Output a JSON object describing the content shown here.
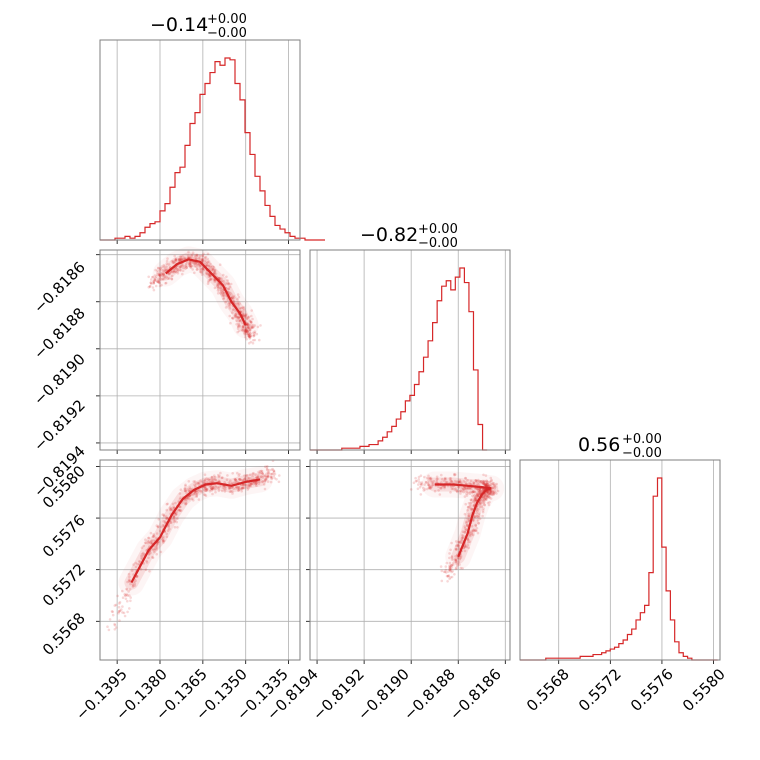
{
  "chart_data": {
    "type": "corner",
    "color": "#d62728",
    "parameters": [
      {
        "title_value": "−0.14",
        "title_plus": "+0.00",
        "title_minus": "−0.00",
        "range": [
          -0.1401,
          -0.1331
        ],
        "ticks": [
          -0.1395,
          -0.138,
          -0.1365,
          -0.135,
          -0.1335
        ],
        "tick_labels": [
          "−0.1395",
          "−0.1380",
          "−0.1365",
          "−0.1350",
          "−0.1335"
        ],
        "hist": {
          "edges_start": -0.1401,
          "bin_width": 0.000175,
          "counts": [
            0,
            0,
            0,
            1,
            1,
            2,
            1,
            2,
            4,
            7,
            9,
            10,
            16,
            20,
            29,
            37,
            40,
            52,
            64,
            70,
            80,
            86,
            92,
            98,
            96,
            100,
            99,
            86,
            77,
            59,
            47,
            35,
            27,
            19,
            13,
            8,
            6,
            4,
            2,
            1,
            1,
            0,
            0,
            0,
            0
          ]
        }
      },
      {
        "title_value": "−0.82",
        "title_plus": "+0.00",
        "title_minus": "−0.00",
        "range": [
          -0.81943,
          -0.81858
        ],
        "ticks": [
          -0.8194,
          -0.8192,
          -0.819,
          -0.8188,
          -0.8186
        ],
        "tick_labels": [
          "−0.8194",
          "−0.8192",
          "−0.8190",
          "−0.8188",
          "−0.8186"
        ],
        "hist": {
          "edges_start": -0.81943,
          "bin_width": 1.93e-05,
          "counts": [
            0,
            0,
            0,
            0,
            0,
            0,
            0,
            1,
            1,
            1,
            1,
            2,
            2,
            3,
            3,
            5,
            7,
            10,
            13,
            17,
            21,
            27,
            30,
            36,
            43,
            51,
            60,
            70,
            82,
            90,
            93,
            88,
            95,
            100,
            92,
            76,
            44,
            14,
            0
          ]
        }
      },
      {
        "title_value": "0.56",
        "title_plus": "+0.00",
        "title_minus": "−0.00",
        "range": [
          0.5565,
          0.55805
        ],
        "ticks": [
          0.5568,
          0.5572,
          0.5576,
          0.558
        ],
        "tick_labels": [
          "0.5568",
          "0.5572",
          "0.5576",
          "0.5580"
        ],
        "hist": {
          "edges_start": 0.5565,
          "bin_width": 3.33e-05,
          "counts": [
            0,
            0,
            0,
            0,
            0,
            0,
            1,
            1,
            1,
            1,
            1,
            1,
            1,
            1,
            2,
            2,
            2,
            3,
            3,
            4,
            5,
            6,
            7,
            9,
            11,
            14,
            17,
            22,
            26,
            30,
            48,
            90,
            100,
            62,
            38,
            22,
            10,
            4,
            2,
            1,
            0,
            0,
            0,
            0,
            0,
            0
          ]
        }
      }
    ],
    "y_tick_labels": {
      "row1": [
        "−0.8186",
        "−0.8188",
        "−0.8190",
        "−0.8192",
        "−0.8194"
      ],
      "row2": [
        "0.5580",
        "0.5576",
        "0.5572",
        "0.5568"
      ]
    },
    "scatter": {
      "p1_vs_p0": {
        "ridge": [
          [
            -0.1382,
            -0.81872
          ],
          [
            -0.1378,
            -0.81868
          ],
          [
            -0.1374,
            -0.81864
          ],
          [
            -0.137,
            -0.81862
          ],
          [
            -0.1366,
            -0.81863
          ],
          [
            -0.1362,
            -0.81868
          ],
          [
            -0.1358,
            -0.81873
          ],
          [
            -0.1355,
            -0.8188
          ],
          [
            -0.1352,
            -0.81885
          ],
          [
            -0.135,
            -0.8189
          ],
          [
            -0.1348,
            -0.81895
          ]
        ],
        "spread": 2e-05
      },
      "p2_vs_p0": {
        "ridge": [
          [
            -0.1397,
            0.55675
          ],
          [
            -0.139,
            0.5571
          ],
          [
            -0.1384,
            0.55735
          ],
          [
            -0.138,
            0.55745
          ],
          [
            -0.1376,
            0.55762
          ],
          [
            -0.1372,
            0.55775
          ],
          [
            -0.1368,
            0.55782
          ],
          [
            -0.1364,
            0.55786
          ],
          [
            -0.136,
            0.55787
          ],
          [
            -0.1355,
            0.55785
          ],
          [
            -0.135,
            0.55788
          ],
          [
            -0.1345,
            0.5579
          ],
          [
            -0.134,
            0.55795
          ]
        ],
        "spread": 4e-05
      },
      "p2_vs_p1": {
        "ridge": [
          [
            -0.81885,
            0.55715
          ],
          [
            -0.8188,
            0.5573
          ],
          [
            -0.81876,
            0.55748
          ],
          [
            -0.81874,
            0.55762
          ],
          [
            -0.81872,
            0.55772
          ],
          [
            -0.8187,
            0.55778
          ],
          [
            -0.81868,
            0.55782
          ],
          [
            -0.81866,
            0.55783
          ],
          [
            -0.8187,
            0.55784
          ],
          [
            -0.81876,
            0.55785
          ],
          [
            -0.81882,
            0.55786
          ],
          [
            -0.8189,
            0.55786
          ],
          [
            -0.81898,
            0.55787
          ]
        ],
        "spread": 3e-05
      }
    }
  }
}
